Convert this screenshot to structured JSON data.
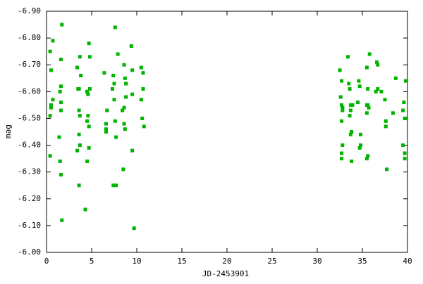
{
  "chart_data": {
    "type": "scatter",
    "xlabel": "JD-2453901",
    "ylabel": "mag",
    "color": "#00b400",
    "x": [
      0.4,
      0.7,
      0.5,
      0.7,
      0.5,
      0.4,
      0.5,
      0.4,
      1.4,
      1.5,
      1.6,
      1.7,
      1.6,
      1.6,
      1.5,
      1.6,
      1.6,
      1.7,
      3.4,
      3.5,
      3.6,
      3.7,
      3.6,
      3.8,
      3.7,
      3.6,
      3.7,
      3.4,
      3.6,
      4.3,
      4.5,
      4.5,
      4.5,
      4.6,
      4.6,
      4.5,
      4.7,
      4.8,
      4.7,
      4.8,
      4.7,
      6.4,
      6.6,
      6.6,
      6.6,
      6.7,
      7.4,
      7.3,
      7.5,
      7.6,
      7.5,
      7.6,
      7.7,
      7.9,
      7.4,
      7.7,
      8.4,
      8.6,
      8.5,
      8.7,
      8.6,
      8.6,
      8.7,
      8.8,
      8.8,
      8.8,
      9.4,
      9.5,
      9.5,
      9.7,
      9.5,
      10.5,
      10.7,
      10.5,
      10.7,
      10.8,
      10.6,
      32.5,
      32.7,
      32.6,
      32.7,
      32.7,
      32.7,
      32.7,
      32.8,
      32.8,
      32.8,
      33.4,
      33.5,
      33.6,
      33.7,
      33.7,
      33.6,
      33.7,
      33.8,
      33.8,
      33.9,
      34.6,
      34.7,
      34.5,
      34.8,
      34.8,
      34.7,
      35.5,
      35.5,
      35.6,
      35.7,
      35.5,
      35.6,
      35.8,
      35.5,
      35.6,
      36.6,
      36.7,
      36.5,
      37.5,
      37.6,
      37.6,
      37.7,
      38.4,
      38.7,
      39.5,
      39.5,
      39.6,
      39.7,
      39.8,
      39.8,
      39.7,
      39.7,
      37.1,
      36.7
    ],
    "values": [
      -6.75,
      -6.79,
      -6.68,
      -6.57,
      -6.54,
      -6.51,
      -6.55,
      -6.36,
      -6.43,
      -6.34,
      -6.29,
      -6.85,
      -6.72,
      -6.62,
      -6.6,
      -6.56,
      -6.53,
      -6.12,
      -6.69,
      -6.61,
      -6.53,
      -6.51,
      -6.61,
      -6.66,
      -6.73,
      -6.44,
      -6.4,
      -6.38,
      -6.25,
      -6.16,
      -6.34,
      -6.6,
      -6.6,
      -6.59,
      -6.51,
      -6.49,
      -6.47,
      -6.61,
      -6.78,
      -6.73,
      -6.39,
      -6.67,
      -6.48,
      -6.46,
      -6.45,
      -6.53,
      -6.66,
      -6.61,
      -6.63,
      -6.84,
      -6.57,
      -6.49,
      -6.43,
      -6.74,
      -6.25,
      -6.25,
      -6.53,
      -6.54,
      -6.31,
      -6.46,
      -6.48,
      -6.7,
      -6.65,
      -6.63,
      -6.58,
      -6.63,
      -6.77,
      -6.68,
      -6.38,
      -6.09,
      -6.59,
      -6.69,
      -6.67,
      -6.57,
      -6.61,
      -6.47,
      -6.5,
      -6.68,
      -6.64,
      -6.58,
      -6.55,
      -6.49,
      -6.37,
      -6.35,
      -6.4,
      -6.53,
      -6.54,
      -6.73,
      -6.63,
      -6.61,
      -6.55,
      -6.53,
      -6.51,
      -6.44,
      -6.45,
      -6.34,
      -6.55,
      -6.64,
      -6.62,
      -6.56,
      -6.44,
      -6.4,
      -6.39,
      -6.52,
      -6.55,
      -6.55,
      -6.54,
      -6.35,
      -6.61,
      -6.74,
      -6.69,
      -6.36,
      -6.71,
      -6.7,
      -6.6,
      -6.57,
      -6.49,
      -6.47,
      -6.31,
      -6.52,
      -6.65,
      -6.4,
      -6.53,
      -6.56,
      -6.5,
      -6.5,
      -6.64,
      -6.37,
      -6.35,
      -6.6,
      -6.61
    ],
    "xlim": [
      0,
      40
    ],
    "xticks": [
      0,
      5,
      10,
      15,
      20,
      25,
      30,
      35,
      40
    ],
    "ylim": [
      -6.0,
      -6.9
    ],
    "yticks": [
      {
        "value": -6.0,
        "label": "-6.00"
      },
      {
        "value": -6.1,
        "label": "-6.10"
      },
      {
        "value": -6.2,
        "label": "-6.20"
      },
      {
        "value": -6.3,
        "label": "-6.30"
      },
      {
        "value": -6.4,
        "label": "-6.40"
      },
      {
        "value": -6.5,
        "label": "-6.50"
      },
      {
        "value": -6.6,
        "label": "-6.60"
      },
      {
        "value": -6.7,
        "label": "-6.70"
      },
      {
        "value": -6.8,
        "label": "-6.80"
      },
      {
        "value": -6.9,
        "label": "-6.90"
      }
    ]
  }
}
